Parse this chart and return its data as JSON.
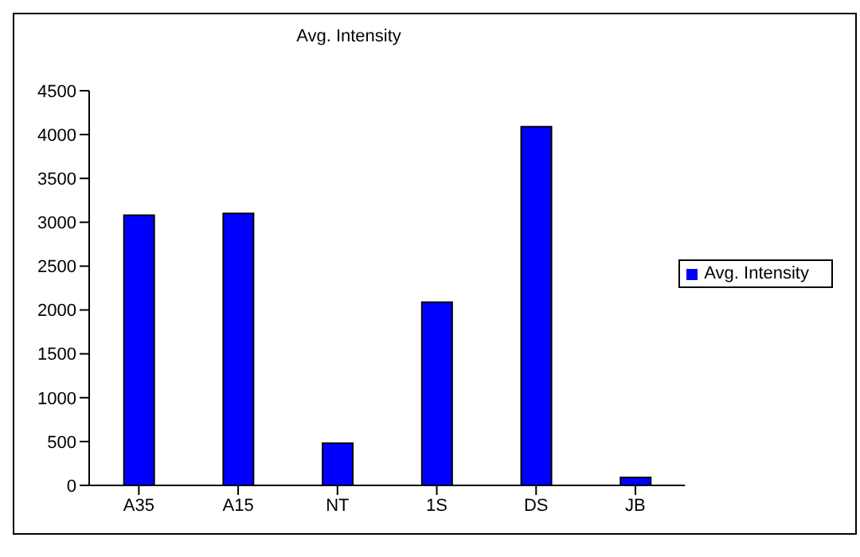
{
  "chart_data": {
    "type": "bar",
    "title": "Avg. Intensity",
    "categories": [
      "A35",
      "A15",
      "NT",
      "1S",
      "DS",
      "JB"
    ],
    "series": [
      {
        "name": "Avg. Intensity",
        "color": "#0000ff",
        "values": [
          3080,
          3100,
          480,
          2090,
          4090,
          90
        ]
      }
    ],
    "ylim": [
      0,
      4500
    ],
    "yticks": [
      0,
      500,
      1000,
      1500,
      2000,
      2500,
      3000,
      3500,
      4000,
      4500
    ],
    "grid": false,
    "legend": "right"
  }
}
